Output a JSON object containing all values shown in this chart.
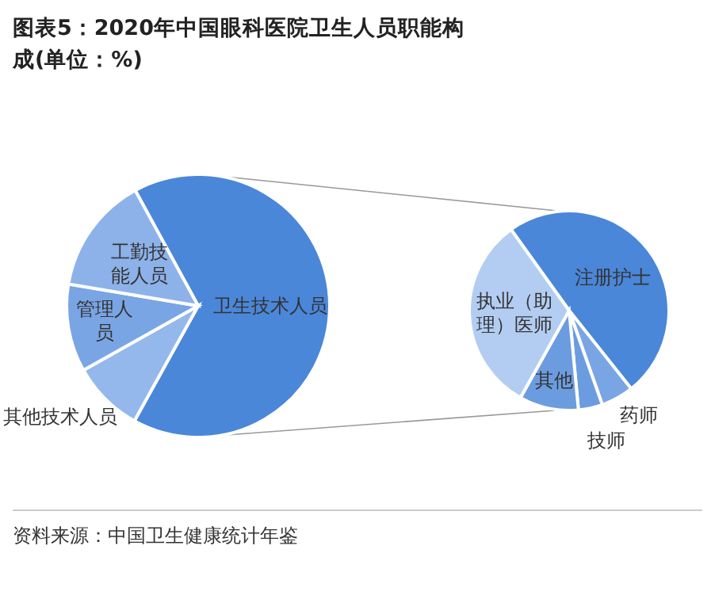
{
  "chart_data": [
    {
      "type": "pie",
      "title": "图表5：2020年中国眼科医院卫生人员职能构成(单位：%)",
      "categories": [
        "卫生技术人员",
        "其他技术人员",
        "管理人员",
        "工勤技能人员"
      ],
      "values": [
        66,
        8.8,
        10.8,
        14.4
      ],
      "colors": [
        "#4a87d9",
        "#94b8ec",
        "#7aa5e4",
        "#8db2ea"
      ],
      "annotations": [
        "资料来源：中国卫生健康统计年鉴"
      ]
    },
    {
      "type": "pie",
      "categories": [
        "注册护士",
        "药师",
        "技师",
        "其他",
        "执业（助理）医师"
      ],
      "values": [
        49.2,
        5.3,
        3.9,
        9.6,
        32.0
      ],
      "colors": [
        "#4a87d9",
        "#7aa5e4",
        "#6c9ce0",
        "#6c9ce0",
        "#b3cdf2"
      ]
    }
  ]
}
